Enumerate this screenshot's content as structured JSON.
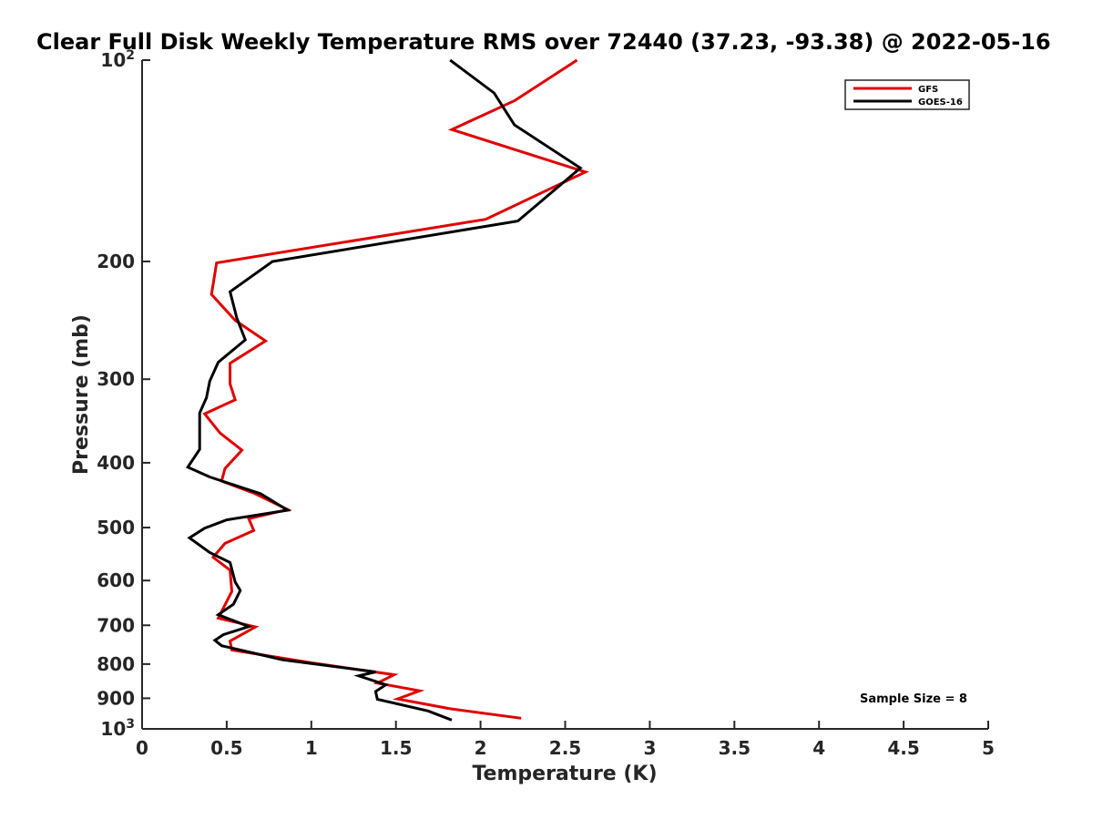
{
  "chart_data": {
    "type": "line",
    "title": "Clear Full Disk Weekly Temperature RMS over 72440 (37.23, -93.38) @ 2022-05-16",
    "xlabel": "Temperature (K)",
    "ylabel": "Pressure (mb)",
    "xlim": [
      0,
      5
    ],
    "ylim": [
      100,
      1000
    ],
    "y_scale": "log",
    "y_reversed": true,
    "grid": false,
    "legend_position": "top-right",
    "x_ticks": [
      0,
      0.5,
      1,
      1.5,
      2,
      2.5,
      3,
      3.5,
      4,
      4.5,
      5
    ],
    "x_tick_labels": [
      "0",
      "0.5",
      "1",
      "1.5",
      "2",
      "2.5",
      "3",
      "3.5",
      "4",
      "4.5",
      "5"
    ],
    "y_ticks": [
      100,
      200,
      300,
      400,
      500,
      600,
      700,
      800,
      900,
      1000
    ],
    "y_tick_labels": [
      {
        "base": "10",
        "exp": "2"
      },
      {
        "base": "200",
        "exp": ""
      },
      {
        "base": "300",
        "exp": ""
      },
      {
        "base": "400",
        "exp": ""
      },
      {
        "base": "500",
        "exp": ""
      },
      {
        "base": "600",
        "exp": ""
      },
      {
        "base": "700",
        "exp": ""
      },
      {
        "base": "800",
        "exp": ""
      },
      {
        "base": "900",
        "exp": ""
      },
      {
        "base": "10",
        "exp": "3"
      }
    ],
    "series": [
      {
        "name": "GFS",
        "color": "#e00000",
        "x": [
          2.57,
          2.2,
          1.83,
          2.62,
          2.03,
          0.44,
          0.41,
          0.55,
          0.73,
          0.52,
          0.52,
          0.55,
          0.37,
          0.46,
          0.59,
          0.49,
          0.47,
          0.66,
          0.86,
          0.63,
          0.66,
          0.49,
          0.42,
          0.52,
          0.53,
          0.45,
          0.67,
          0.52,
          0.53,
          1.01,
          1.49,
          1.39,
          1.64,
          1.51,
          1.82,
          2.24
        ],
        "y": [
          100,
          115,
          127,
          147,
          173,
          201,
          224,
          245,
          263,
          284,
          305,
          322,
          338,
          361,
          383,
          408,
          426,
          444,
          470,
          485,
          505,
          528,
          554,
          579,
          623,
          683,
          704,
          739,
          762,
          797,
          830,
          854,
          877,
          902,
          933,
          964
        ]
      },
      {
        "name": "GOES-16",
        "color": "#000000",
        "x": [
          1.82,
          2.08,
          2.2,
          2.59,
          2.22,
          0.77,
          0.52,
          0.56,
          0.61,
          0.45,
          0.4,
          0.38,
          0.34,
          0.34,
          0.34,
          0.27,
          0.4,
          0.7,
          0.86,
          0.5,
          0.37,
          0.28,
          0.4,
          0.52,
          0.55,
          0.58,
          0.54,
          0.45,
          0.63,
          0.48,
          0.43,
          0.47,
          0.83,
          1.38,
          1.28,
          1.44,
          1.38,
          1.39,
          1.69,
          1.83
        ],
        "y": [
          100,
          112,
          125,
          145,
          174,
          200,
          222,
          243,
          262,
          283,
          302,
          320,
          337,
          357,
          382,
          406,
          420,
          445,
          471,
          487,
          501,
          518,
          545,
          564,
          603,
          621,
          651,
          675,
          703,
          723,
          737,
          751,
          788,
          822,
          833,
          859,
          879,
          903,
          940,
          970
        ]
      }
    ],
    "annotations": [
      {
        "text": "Sample Size = 8"
      }
    ]
  }
}
